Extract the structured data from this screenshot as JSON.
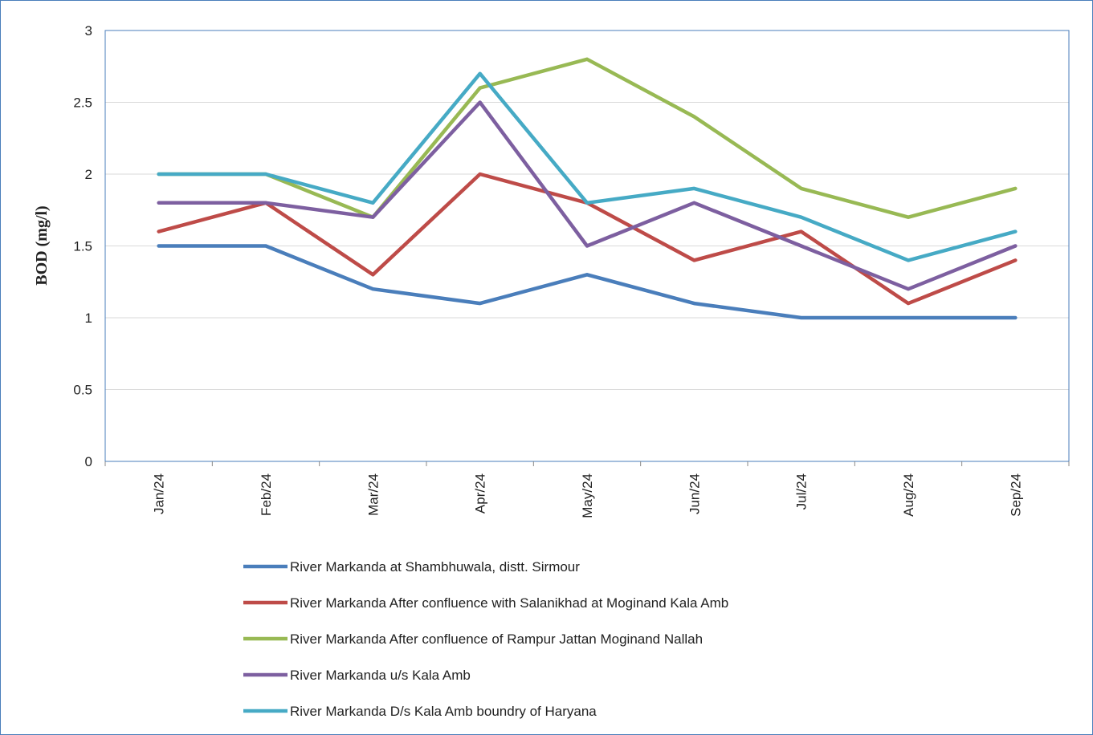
{
  "chart_data": {
    "type": "line",
    "ylabel": "BOD (mg/l)",
    "categories": [
      "Jan/24",
      "Feb/24",
      "Mar/24",
      "Apr/24",
      "May/24",
      "Jun/24",
      "Jul/24",
      "Aug/24",
      "Sep/24"
    ],
    "series": [
      {
        "name": "River Markanda at Shambhuwala, distt. Sirmour",
        "color": "#4a7ebb",
        "values": [
          1.5,
          1.5,
          1.2,
          1.1,
          1.3,
          1.1,
          1.0,
          1.0,
          1.0
        ]
      },
      {
        "name": "River Markanda After confluence with Salanikhad at Moginand Kala Amb",
        "color": "#be4b48",
        "values": [
          1.6,
          1.8,
          1.3,
          2.0,
          1.8,
          1.4,
          1.6,
          1.1,
          1.4
        ]
      },
      {
        "name": "River Markanda After confluence of Rampur Jattan Moginand Nallah",
        "color": "#98b954",
        "values": [
          2.0,
          2.0,
          1.7,
          2.6,
          2.8,
          2.4,
          1.9,
          1.7,
          1.9
        ]
      },
      {
        "name": "River Markanda u/s Kala Amb",
        "color": "#7d5fa0",
        "values": [
          1.8,
          1.8,
          1.7,
          2.5,
          1.5,
          1.8,
          1.5,
          1.2,
          1.5
        ]
      },
      {
        "name": "River Markanda D/s Kala Amb boundry of Haryana",
        "color": "#46aac5",
        "values": [
          2.0,
          2.0,
          1.8,
          2.7,
          1.8,
          1.9,
          1.7,
          1.4,
          1.6
        ]
      }
    ],
    "ylim": [
      0,
      3
    ],
    "yticks": [
      0,
      0.5,
      1,
      1.5,
      2,
      2.5,
      3
    ],
    "grid": true
  }
}
